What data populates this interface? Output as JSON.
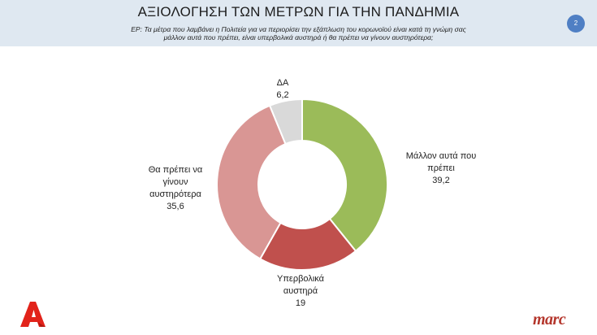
{
  "header": {
    "title": "ΑΞΙΟΛΟΓΗΣΗ ΤΩΝ ΜΕΤΡΩΝ ΓΙΑ ΤΗΝ ΠΑΝΔΗΜΙΑ",
    "question_line1": "ΕΡ: Τα μέτρα που λαμβάνει η Πολιτεία για να περιορίσει την εξάπλωση του κορωνοϊού είναι κατά τη γνώμη σας",
    "question_line2": "μάλλον αυτά που πρέπει, είναι υπερβολικά αυστηρά ή θα πρέπει να γίνουν αυστηρότερα;",
    "page_number": "2"
  },
  "logos": {
    "left": "alpha-logo",
    "right": "marc"
  },
  "chart_data": {
    "type": "pie",
    "donut": true,
    "categories": [
      "Μάλλον αυτά που πρέπει",
      "Υπερβολικά αυστηρά",
      "Θα πρέπει να γίνουν αυστηρότερα",
      "ΔΑ"
    ],
    "values": [
      39.2,
      19,
      35.6,
      6.2
    ],
    "value_labels": [
      "39,2",
      "19",
      "35,6",
      "6,2"
    ],
    "colors": [
      "#9bbb59",
      "#c0504d",
      "#d99694",
      "#d9d9d9"
    ],
    "label_lines": [
      [
        "Μάλλον αυτά που",
        "πρέπει"
      ],
      [
        "Υπερβολικά",
        "αυστηρά"
      ],
      [
        "Θα πρέπει να",
        "γίνουν",
        "αυστηρότερα"
      ],
      [
        "ΔΑ"
      ]
    ],
    "start_angle_deg": 0,
    "direction": "clockwise"
  }
}
